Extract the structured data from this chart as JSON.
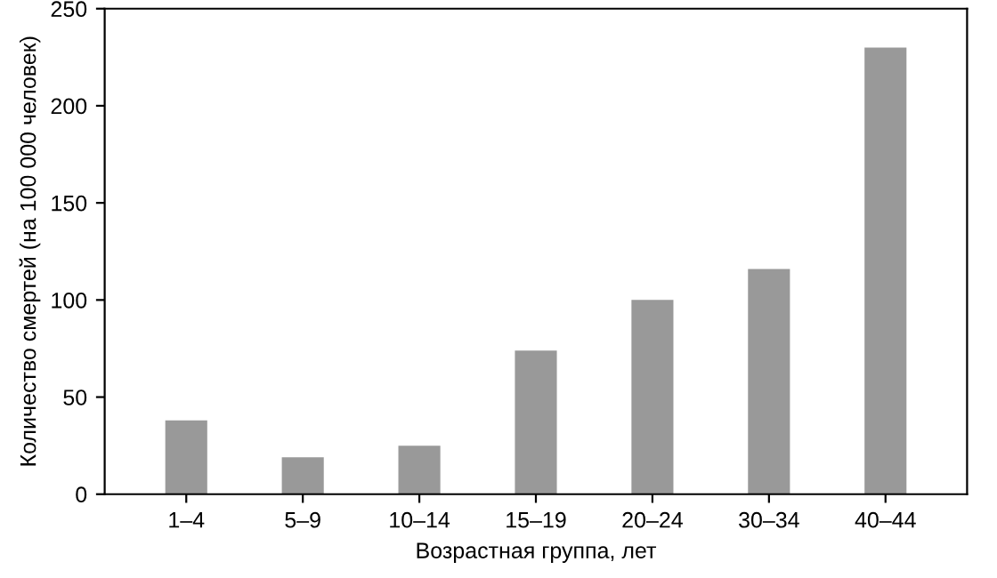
{
  "chart_data": {
    "type": "bar",
    "xlabel": "Возрастная группа, лет",
    "ylabel": "Количество смертей (на 100 000 человек)",
    "categories": [
      "1–4",
      "5–9",
      "10–14",
      "15–19",
      "20–24",
      "30–34",
      "40–44"
    ],
    "values": [
      38,
      19,
      25,
      74,
      100,
      116,
      230
    ],
    "color": "#999999",
    "ylim": [
      0,
      250
    ],
    "yticks": [
      0,
      50,
      100,
      150,
      200,
      250
    ],
    "grid": false
  }
}
